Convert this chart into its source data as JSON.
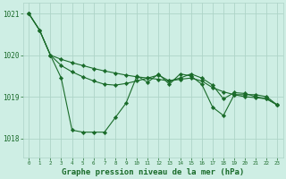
{
  "background_color": "#ceeee4",
  "grid_color": "#aed4c8",
  "line_color": "#1a6b2a",
  "title": "Graphe pression niveau de la mer (hPa)",
  "ylabel_ticks": [
    1018,
    1019,
    1020,
    1021
  ],
  "xlim": [
    -0.5,
    23.5
  ],
  "ylim": [
    1017.55,
    1021.25
  ],
  "line1_x": [
    0,
    1,
    2,
    3,
    4,
    5,
    6,
    7,
    8,
    9,
    10,
    11,
    12,
    13,
    14,
    15,
    16,
    17,
    18,
    19,
    20,
    21,
    22,
    23
  ],
  "line1_y": [
    1021.0,
    1020.6,
    1020.0,
    1019.45,
    1018.2,
    1018.15,
    1018.15,
    1018.15,
    1018.5,
    1018.85,
    1019.5,
    1019.35,
    1019.55,
    1019.3,
    1019.55,
    1019.5,
    1019.3,
    1018.75,
    1018.55,
    1019.05,
    1019.05,
    1019.05,
    1019.0,
    1018.8
  ],
  "line2_x": [
    0,
    1,
    2,
    3,
    4,
    5,
    6,
    7,
    8,
    9,
    10,
    11,
    12,
    13,
    14,
    15,
    16,
    17,
    18,
    19,
    20,
    21,
    22,
    23
  ],
  "line2_y": [
    1021.0,
    1020.6,
    1020.0,
    1019.9,
    1019.82,
    1019.75,
    1019.68,
    1019.62,
    1019.57,
    1019.52,
    1019.48,
    1019.45,
    1019.42,
    1019.38,
    1019.42,
    1019.45,
    1019.38,
    1019.22,
    1019.12,
    1019.05,
    1019.0,
    1018.98,
    1018.95,
    1018.8
  ],
  "line3_x": [
    0,
    1,
    2,
    3,
    4,
    5,
    6,
    7,
    8,
    9,
    10,
    11,
    12,
    13,
    14,
    15,
    16,
    17,
    18,
    19,
    20,
    21,
    22,
    23
  ],
  "line3_y": [
    1021.0,
    1020.6,
    1020.0,
    1019.75,
    1019.6,
    1019.48,
    1019.38,
    1019.3,
    1019.28,
    1019.32,
    1019.38,
    1019.45,
    1019.52,
    1019.38,
    1019.45,
    1019.55,
    1019.45,
    1019.28,
    1018.95,
    1019.1,
    1019.08,
    1019.0,
    1018.95,
    1018.8
  ]
}
